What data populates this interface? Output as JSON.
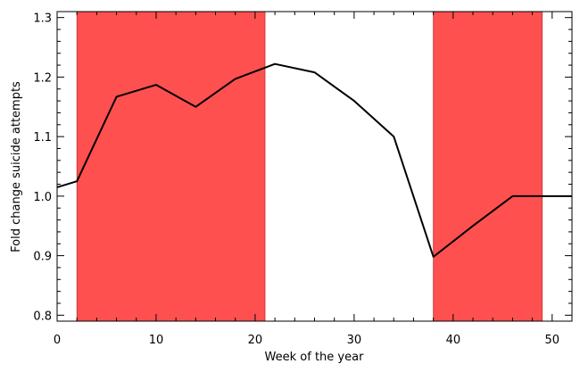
{
  "chart_data": {
    "type": "line",
    "title": "",
    "xlabel": "Week of the year",
    "ylabel": "Fold change suicide attempts",
    "xlim": [
      0,
      52
    ],
    "ylim": [
      0.79,
      1.31
    ],
    "x_ticks": [
      0,
      10,
      20,
      30,
      40,
      50
    ],
    "y_ticks": [
      0.8,
      0.9,
      1.0,
      1.1,
      1.2,
      1.3
    ],
    "y_tick_labels": [
      "0.8",
      "0.9",
      "1.0",
      "1.1",
      "1.2",
      "1.3"
    ],
    "grid": false,
    "shaded_regions": [
      {
        "x_start": 2,
        "x_end": 21,
        "color": "#ff5050"
      },
      {
        "x_start": 38,
        "x_end": 49,
        "color": "#ff5050"
      }
    ],
    "series": [
      {
        "color": "#000000",
        "x": [
          0,
          2,
          6,
          10,
          14,
          18,
          22,
          26,
          30,
          34,
          38,
          42,
          46,
          50,
          52
        ],
        "y": [
          1.015,
          1.025,
          1.167,
          1.187,
          1.15,
          1.197,
          1.222,
          1.208,
          1.16,
          1.1,
          0.898,
          0.95,
          1.0,
          1.0,
          1.0
        ]
      }
    ]
  }
}
